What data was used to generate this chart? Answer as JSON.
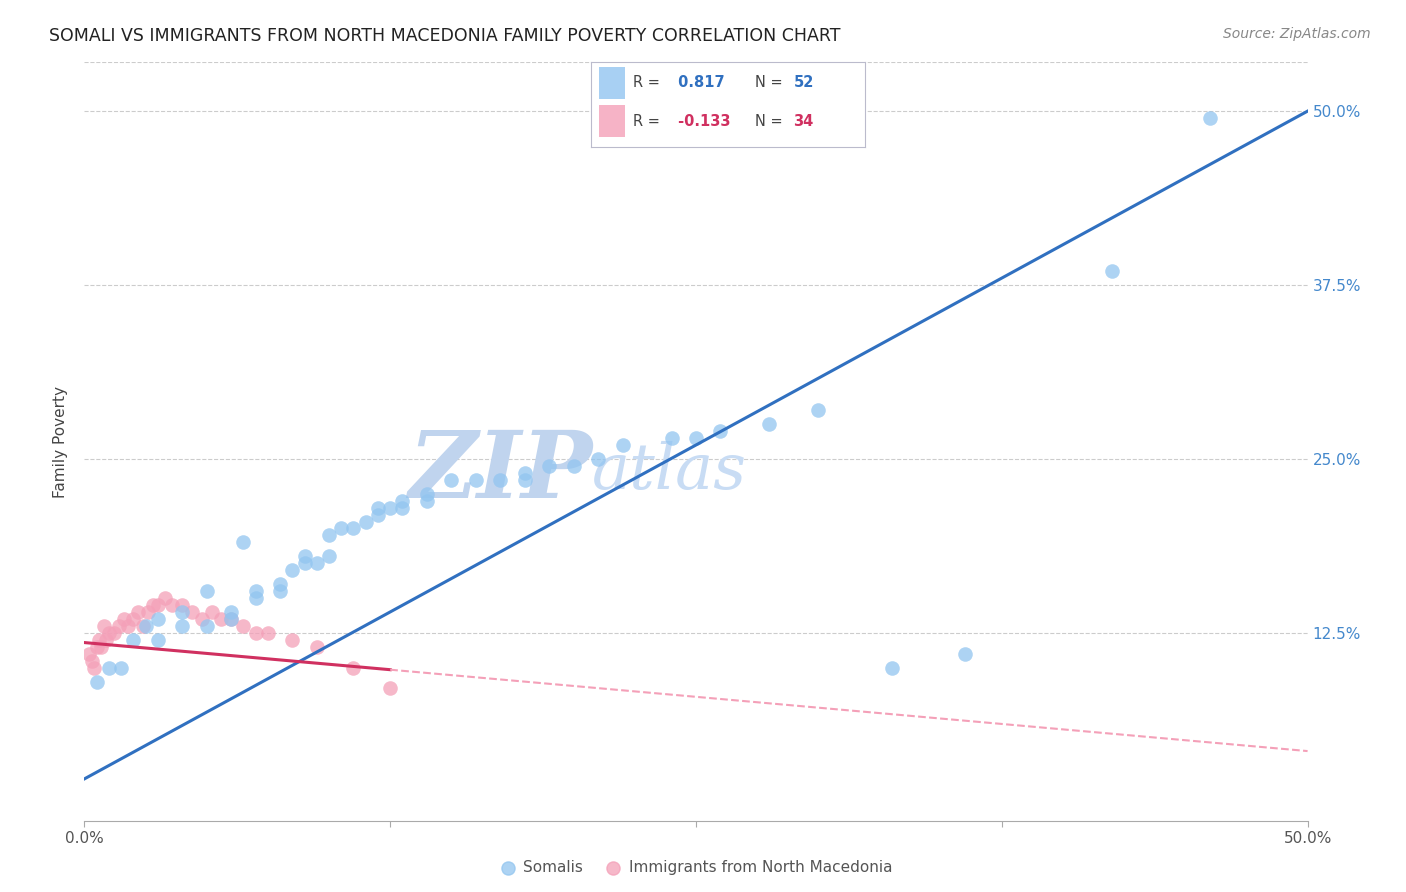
{
  "title": "SOMALI VS IMMIGRANTS FROM NORTH MACEDONIA FAMILY POVERTY CORRELATION CHART",
  "source": "Source: ZipAtlas.com",
  "ylabel": "Family Poverty",
  "ytick_labels": [
    "12.5%",
    "25.0%",
    "37.5%",
    "50.0%"
  ],
  "ytick_values": [
    0.125,
    0.25,
    0.375,
    0.5
  ],
  "xlim": [
    0.0,
    0.5
  ],
  "ylim": [
    -0.01,
    0.535
  ],
  "r_somali": 0.817,
  "n_somali": 52,
  "r_macedonian": -0.133,
  "n_macedonian": 34,
  "color_somali": "#92C5F0",
  "color_macedonian": "#F4A0B8",
  "trendline_somali_color": "#3070C0",
  "trendline_macedonian_solid_color": "#D03060",
  "trendline_macedonian_dashed_color": "#F4A0B8",
  "background_color": "#ffffff",
  "watermark_zip_color": "#C0D4EE",
  "watermark_atlas_color": "#C8DCF4",
  "somali_x": [
    0.005,
    0.01,
    0.015,
    0.02,
    0.025,
    0.03,
    0.03,
    0.04,
    0.04,
    0.05,
    0.05,
    0.06,
    0.06,
    0.065,
    0.07,
    0.07,
    0.08,
    0.08,
    0.085,
    0.09,
    0.09,
    0.095,
    0.1,
    0.1,
    0.105,
    0.11,
    0.115,
    0.12,
    0.12,
    0.125,
    0.13,
    0.13,
    0.14,
    0.14,
    0.15,
    0.16,
    0.17,
    0.18,
    0.18,
    0.19,
    0.2,
    0.21,
    0.22,
    0.24,
    0.25,
    0.26,
    0.28,
    0.3,
    0.33,
    0.36,
    0.42,
    0.46
  ],
  "somali_y": [
    0.09,
    0.1,
    0.1,
    0.12,
    0.13,
    0.12,
    0.135,
    0.13,
    0.14,
    0.13,
    0.155,
    0.135,
    0.14,
    0.19,
    0.15,
    0.155,
    0.155,
    0.16,
    0.17,
    0.175,
    0.18,
    0.175,
    0.18,
    0.195,
    0.2,
    0.2,
    0.205,
    0.21,
    0.215,
    0.215,
    0.215,
    0.22,
    0.22,
    0.225,
    0.235,
    0.235,
    0.235,
    0.235,
    0.24,
    0.245,
    0.245,
    0.25,
    0.26,
    0.265,
    0.265,
    0.27,
    0.275,
    0.285,
    0.1,
    0.11,
    0.385,
    0.495
  ],
  "macedonian_x": [
    0.002,
    0.003,
    0.004,
    0.005,
    0.006,
    0.007,
    0.008,
    0.009,
    0.01,
    0.012,
    0.014,
    0.016,
    0.018,
    0.02,
    0.022,
    0.024,
    0.026,
    0.028,
    0.03,
    0.033,
    0.036,
    0.04,
    0.044,
    0.048,
    0.052,
    0.056,
    0.06,
    0.065,
    0.07,
    0.075,
    0.085,
    0.095,
    0.11,
    0.125
  ],
  "macedonian_y": [
    0.11,
    0.105,
    0.1,
    0.115,
    0.12,
    0.115,
    0.13,
    0.12,
    0.125,
    0.125,
    0.13,
    0.135,
    0.13,
    0.135,
    0.14,
    0.13,
    0.14,
    0.145,
    0.145,
    0.15,
    0.145,
    0.145,
    0.14,
    0.135,
    0.14,
    0.135,
    0.135,
    0.13,
    0.125,
    0.125,
    0.12,
    0.115,
    0.1,
    0.085
  ],
  "trendline_somali_x0": 0.0,
  "trendline_somali_y0": 0.02,
  "trendline_somali_x1": 0.5,
  "trendline_somali_y1": 0.5,
  "trendline_mac_x0": 0.0,
  "trendline_mac_y0": 0.118,
  "trendline_mac_x1": 0.5,
  "trendline_mac_y1": 0.04,
  "trendline_mac_solid_end": 0.125
}
